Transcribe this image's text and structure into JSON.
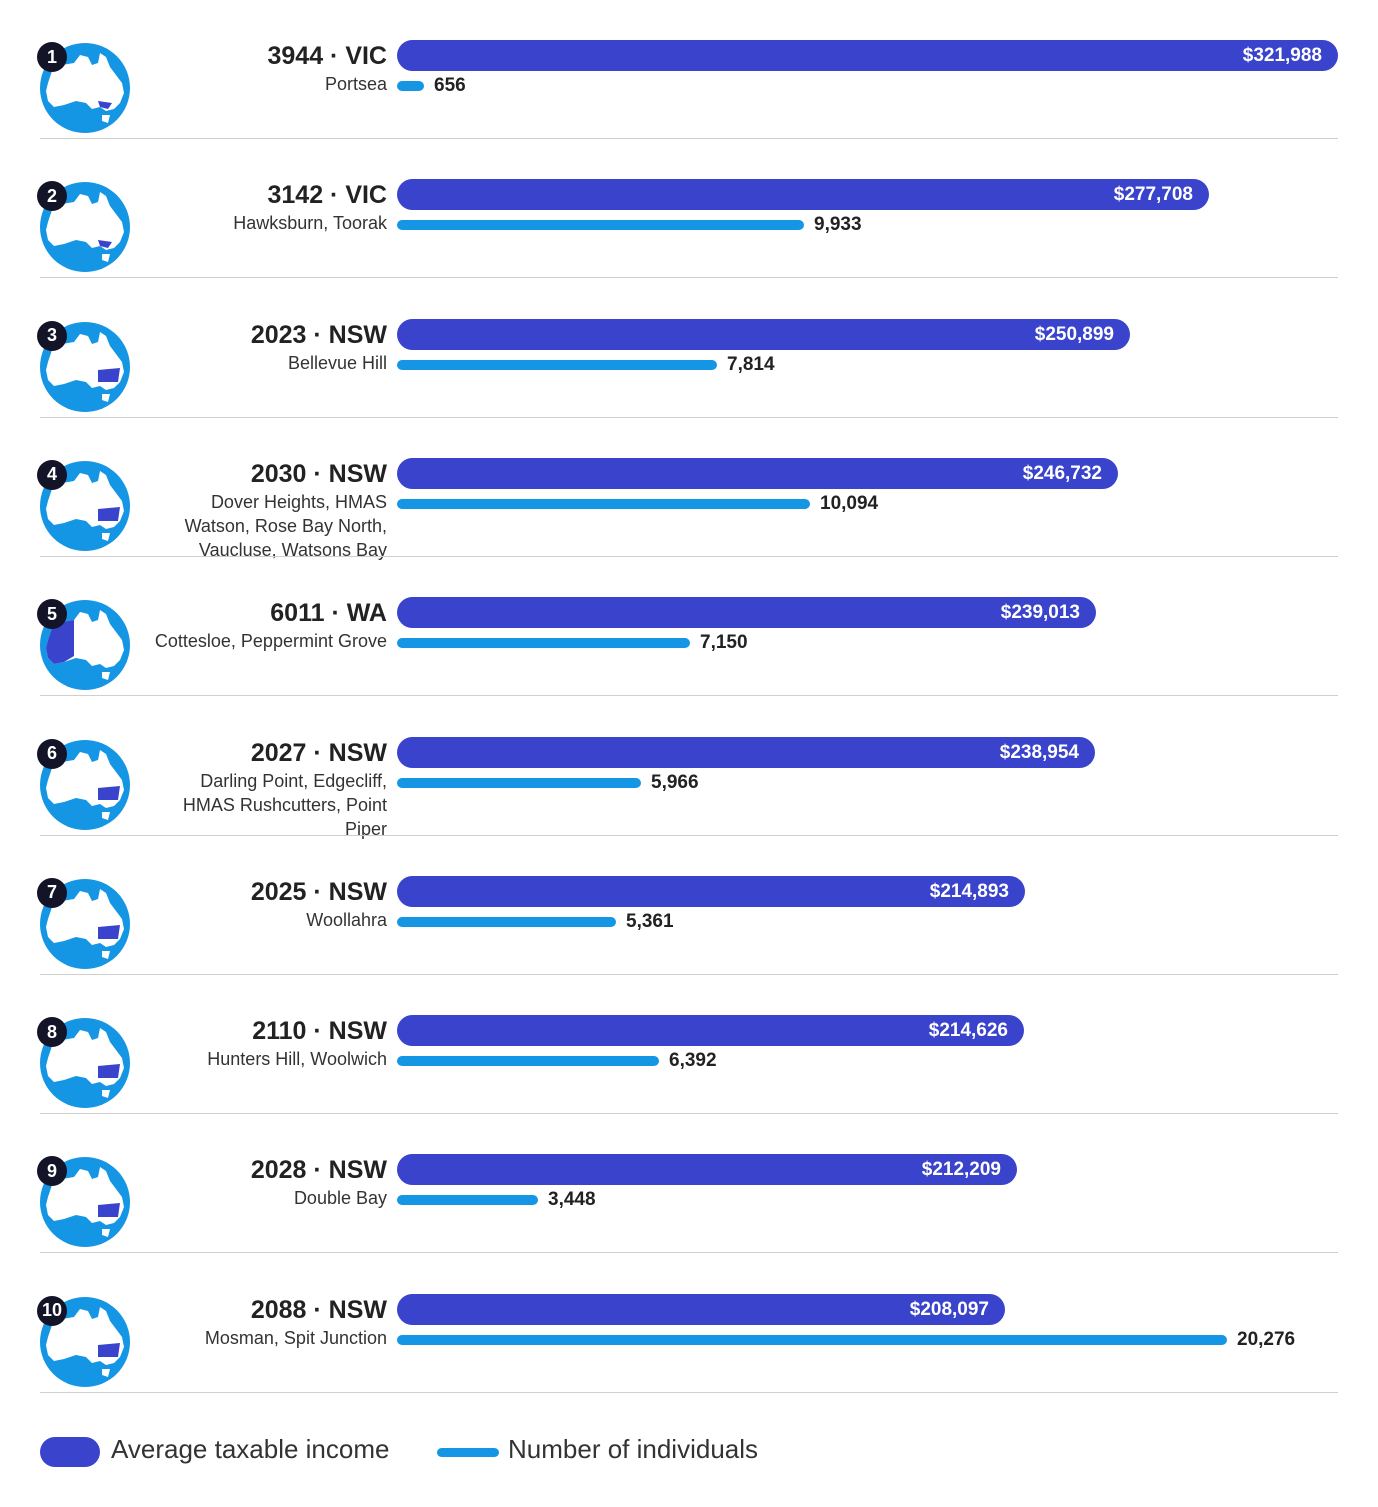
{
  "chart_data": {
    "type": "bar",
    "series": [
      {
        "name": "Average taxable income",
        "prefix": "$",
        "values": [
          321988,
          277708,
          250899,
          246732,
          239013,
          238954,
          214893,
          214626,
          212209,
          208097
        ],
        "labels": [
          "$321,988",
          "$277,708",
          "$250,899",
          "$246,732",
          "$239,013",
          "$238,954",
          "$214,893",
          "$214,626",
          "$212,209",
          "$208,097"
        ],
        "color": "#3a43cc"
      },
      {
        "name": "Number of individuals",
        "values": [
          656,
          9933,
          7814,
          10094,
          7150,
          5966,
          5361,
          6392,
          3448,
          20276
        ],
        "labels": [
          "656",
          "9,933",
          "7,814",
          "10,094",
          "7,150",
          "5,966",
          "5,361",
          "6,392",
          "3,448",
          "20,276"
        ],
        "color": "#1596e4"
      }
    ],
    "rows": [
      {
        "rank": "1",
        "postcode": "3944 · VIC",
        "suburbs": "Portsea",
        "state": "VIC"
      },
      {
        "rank": "2",
        "postcode": "3142 · VIC",
        "suburbs": "Hawksburn, Toorak",
        "state": "VIC"
      },
      {
        "rank": "3",
        "postcode": "2023 · NSW",
        "suburbs": "Bellevue Hill",
        "state": "NSW"
      },
      {
        "rank": "4",
        "postcode": "2030 · NSW",
        "suburbs": "Dover Heights, HMAS Watson, Rose Bay North, Vaucluse, Watsons Bay",
        "state": "NSW"
      },
      {
        "rank": "5",
        "postcode": "6011 · WA",
        "suburbs": "Cottesloe, Peppermint Grove",
        "state": "WA"
      },
      {
        "rank": "6",
        "postcode": "2027 · NSW",
        "suburbs": "Darling Point, Edgecliff, HMAS Rushcutters, Point Piper",
        "state": "NSW"
      },
      {
        "rank": "7",
        "postcode": "2025 · NSW",
        "suburbs": "Woollahra",
        "state": "NSW"
      },
      {
        "rank": "8",
        "postcode": "2110 · NSW",
        "suburbs": "Hunters Hill, Woolwich",
        "state": "NSW"
      },
      {
        "rank": "9",
        "postcode": "2028 · NSW",
        "suburbs": "Double Bay",
        "state": "NSW"
      },
      {
        "rank": "10",
        "postcode": "2088 · NSW",
        "suburbs": "Mosman, Spit Junction",
        "state": "NSW"
      }
    ],
    "income_axis_max": 321988,
    "count_axis_max": 20276,
    "legend_position": "bottom-left",
    "grid": false
  },
  "legend": {
    "income": "Average taxable income",
    "count": "Number of individuals"
  },
  "colors": {
    "map_circle": "#1596e4",
    "map_land": "#ffffff",
    "highlight": "#3a43cc"
  },
  "icons": {
    "map": "australia-map-icon"
  }
}
